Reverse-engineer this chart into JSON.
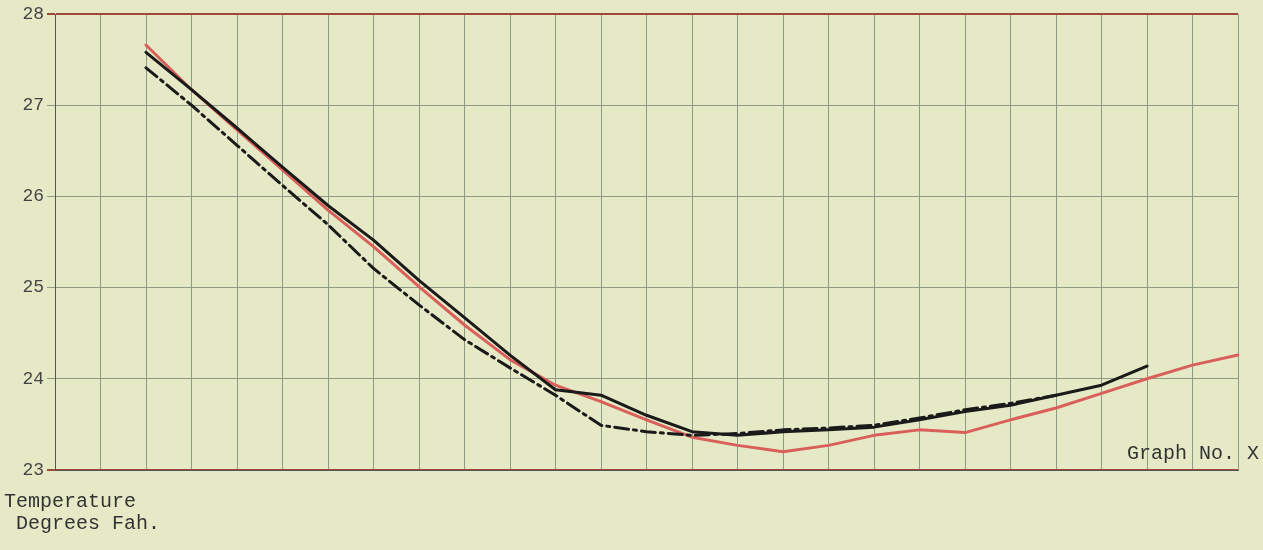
{
  "chart_data": {
    "type": "line",
    "ylabel": "Temperature\nDegrees Fah.",
    "annotations": [
      "Graph No. X"
    ],
    "categories": [
      null,
      null,
      null,
      null,
      null,
      null,
      null,
      null,
      null,
      null,
      null,
      null,
      null,
      null,
      null,
      null,
      null,
      null,
      null,
      null,
      null,
      null,
      null,
      null,
      null,
      null,
      null
    ],
    "series": [
      {
        "color": "#1a1a1a",
        "line_style": "solid",
        "values": [
          null,
          null,
          27.58,
          27.17,
          26.75,
          26.32,
          25.9,
          25.52,
          25.08,
          24.67,
          24.26,
          23.88,
          23.82,
          23.6,
          23.42,
          23.38,
          23.42,
          23.44,
          23.47,
          23.55,
          23.64,
          23.71,
          23.82,
          23.93,
          24.14,
          null,
          null
        ]
      },
      {
        "color": "#1a1a1a",
        "line_style": "dashed",
        "values": [
          null,
          null,
          27.41,
          27.0,
          26.56,
          26.12,
          25.69,
          25.21,
          24.81,
          24.43,
          24.12,
          23.82,
          23.49,
          23.42,
          23.38,
          23.4,
          23.44,
          23.46,
          23.49,
          23.57,
          23.66,
          23.73,
          23.82,
          null,
          null,
          null,
          null
        ]
      },
      {
        "color": "#d9605a",
        "line_style": "solid",
        "values": [
          null,
          null,
          27.66,
          27.17,
          26.73,
          26.29,
          25.85,
          25.45,
          25.01,
          24.59,
          24.21,
          23.93,
          23.75,
          23.55,
          23.36,
          23.27,
          23.2,
          23.27,
          23.38,
          23.44,
          23.41,
          23.55,
          23.68,
          23.84,
          24.0,
          24.15,
          24.26
        ]
      }
    ],
    "ylim": [
      23,
      28
    ],
    "yticks": [
      23,
      24,
      25,
      26,
      27,
      28
    ],
    "grid": true,
    "legend": false,
    "marker": "none"
  }
}
